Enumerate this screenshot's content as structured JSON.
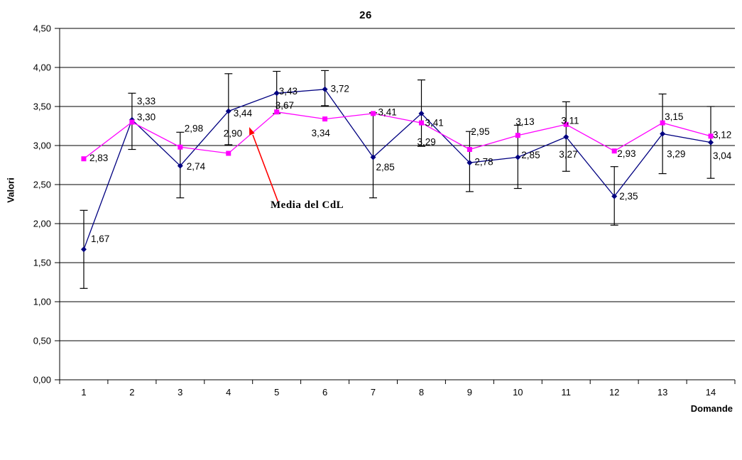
{
  "chart_data": {
    "type": "line",
    "title": "26",
    "xlabel": "Domande",
    "ylabel": "Valori",
    "categories": [
      "1",
      "2",
      "3",
      "4",
      "5",
      "6",
      "7",
      "8",
      "9",
      "10",
      "11",
      "12",
      "13",
      "14"
    ],
    "y_axis": {
      "min": 0,
      "max": 4.5,
      "step": 0.5,
      "ticks": [
        "4,50",
        "4,00",
        "3,50",
        "3,00",
        "2,50",
        "2,00",
        "1,50",
        "1,00",
        "0,50",
        "0,00"
      ],
      "grid": true
    },
    "series": [
      {
        "id": "valori-per-domanda",
        "color": "#000080",
        "marker": "diamond",
        "values": [
          1.67,
          3.33,
          2.74,
          3.44,
          3.67,
          3.72,
          2.85,
          3.41,
          2.78,
          2.85,
          3.11,
          2.35,
          3.15,
          3.04
        ],
        "labels": [
          "1,67",
          "3,33",
          "2,74",
          "3,44",
          "3,67",
          "3,72",
          "2,85",
          "3,41",
          "2,78",
          "2,85",
          "3,11",
          "2,35",
          "3,15",
          "3,04"
        ],
        "error_bars": [
          [
            1.17,
            2.17
          ],
          [
            2.95,
            3.67
          ],
          [
            2.33,
            3.17
          ],
          [
            3.01,
            3.92
          ],
          [
            3.41,
            3.95
          ],
          [
            3.51,
            3.96
          ],
          [
            2.33,
            3.42
          ],
          [
            2.99,
            3.84
          ],
          [
            2.41,
            3.18
          ],
          [
            2.45,
            3.26
          ],
          [
            2.67,
            3.56
          ],
          [
            1.98,
            2.73
          ],
          [
            2.64,
            3.66
          ],
          [
            2.58,
            3.5
          ]
        ],
        "label_offsets": [
          [
            10,
            -15
          ],
          [
            7,
            -26
          ],
          [
            9,
            1
          ],
          [
            7,
            3
          ],
          [
            -2,
            17
          ],
          [
            8,
            -1
          ],
          [
            4,
            14
          ],
          [
            5,
            13
          ],
          [
            7,
            -1
          ],
          [
            5,
            -3
          ],
          [
            -7,
            -23
          ],
          [
            7,
            0
          ],
          [
            3,
            -24
          ],
          [
            3,
            19
          ]
        ]
      },
      {
        "id": "media-del-cdl",
        "color": "#FF00FF",
        "marker": "square",
        "values": [
          2.83,
          3.3,
          2.98,
          2.9,
          3.43,
          3.34,
          3.41,
          3.29,
          2.95,
          3.13,
          3.27,
          2.93,
          3.29,
          3.12
        ],
        "labels": [
          "2,83",
          "3,30",
          "2,98",
          "2,90",
          "3,43",
          "3,34",
          "3,41",
          "3,29",
          "2,95",
          "3,13",
          "3,27",
          "2,93",
          "3,29",
          "3,12"
        ],
        "error_bars": null,
        "label_offsets": [
          [
            8,
            -1
          ],
          [
            7,
            -7
          ],
          [
            6,
            -26
          ],
          [
            -7,
            -28
          ],
          [
            3,
            -29
          ],
          [
            -19,
            20
          ],
          [
            7,
            -2
          ],
          [
            -6,
            27
          ],
          [
            2,
            -25
          ],
          [
            -3,
            -19
          ],
          [
            -10,
            42
          ],
          [
            4,
            4
          ],
          [
            6,
            44
          ],
          [
            3,
            -2
          ]
        ]
      }
    ],
    "annotation": {
      "text": "Media del CdL",
      "arrow_color": "#FF0000",
      "target_series": "media-del-cdl"
    },
    "colors": {
      "grid": "#000000",
      "axis": "#000000",
      "error_bar": "#000000",
      "background": "#FFFFFF",
      "text": "#000000"
    },
    "legend": "none"
  }
}
